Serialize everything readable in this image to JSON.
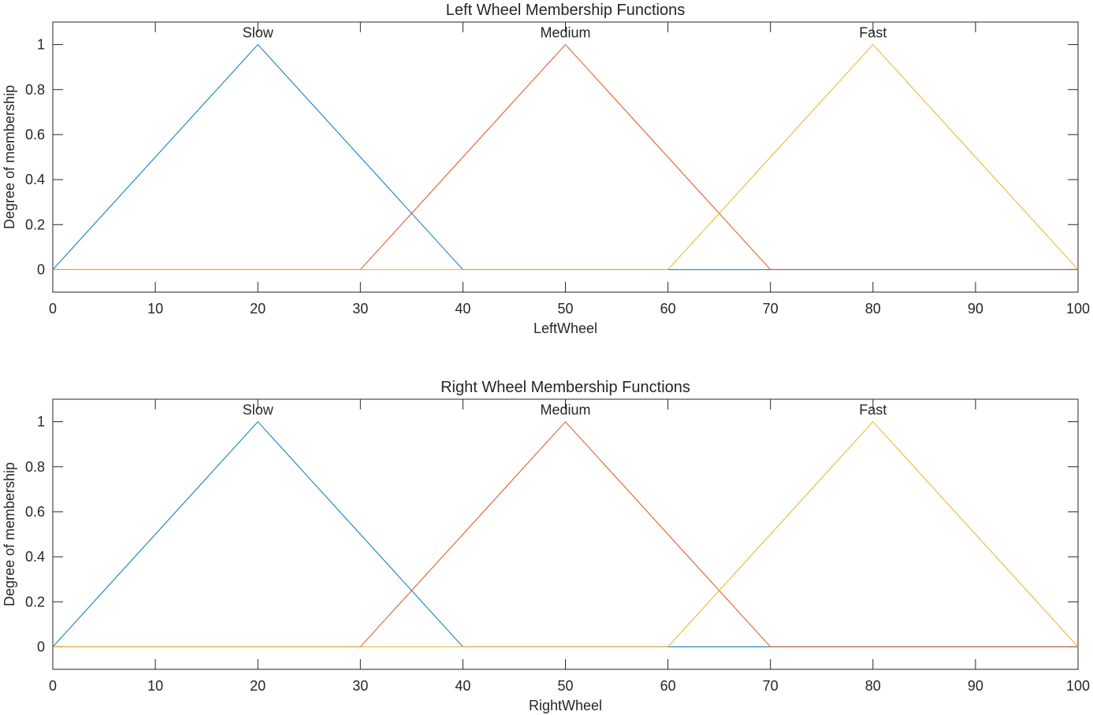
{
  "chart_data": [
    {
      "type": "line",
      "title": "Left Wheel Membership Functions",
      "xlabel": "LeftWheel",
      "ylabel": "Degree of membership",
      "xlim": [
        0,
        100
      ],
      "ylim": [
        -0.1,
        1.1
      ],
      "xticks": [
        0,
        10,
        20,
        30,
        40,
        50,
        60,
        70,
        80,
        90,
        100
      ],
      "yticks": [
        0,
        0.2,
        0.4,
        0.6,
        0.8,
        1
      ],
      "ytick_labels": [
        "0",
        "0.2",
        "0.4",
        "0.6",
        "0.8",
        "1"
      ],
      "grid": false,
      "series": [
        {
          "name": "Slow",
          "color": "#0072BD",
          "x": [
            0,
            20,
            40,
            100
          ],
          "y": [
            0,
            1,
            0,
            0
          ]
        },
        {
          "name": "Medium",
          "color": "#D95319",
          "x": [
            0,
            30,
            50,
            70,
            100
          ],
          "y": [
            0,
            0,
            1,
            0,
            0
          ]
        },
        {
          "name": "Fast",
          "color": "#EDB120",
          "x": [
            0,
            60,
            80,
            100
          ],
          "y": [
            0,
            0,
            1,
            0
          ]
        }
      ]
    },
    {
      "type": "line",
      "title": "Right Wheel Membership Functions",
      "xlabel": "RightWheel",
      "ylabel": "Degree of membership",
      "xlim": [
        0,
        100
      ],
      "ylim": [
        -0.1,
        1.1
      ],
      "xticks": [
        0,
        10,
        20,
        30,
        40,
        50,
        60,
        70,
        80,
        90,
        100
      ],
      "yticks": [
        0,
        0.2,
        0.4,
        0.6,
        0.8,
        1
      ],
      "ytick_labels": [
        "0",
        "0.2",
        "0.4",
        "0.6",
        "0.8",
        "1"
      ],
      "grid": false,
      "series": [
        {
          "name": "Slow",
          "color": "#0072BD",
          "x": [
            0,
            20,
            40,
            100
          ],
          "y": [
            0,
            1,
            0,
            0
          ]
        },
        {
          "name": "Medium",
          "color": "#D95319",
          "x": [
            0,
            30,
            50,
            70,
            100
          ],
          "y": [
            0,
            0,
            1,
            0,
            0
          ]
        },
        {
          "name": "Fast",
          "color": "#EDB120",
          "x": [
            0,
            60,
            80,
            100
          ],
          "y": [
            0,
            0,
            1,
            0
          ]
        }
      ]
    }
  ]
}
